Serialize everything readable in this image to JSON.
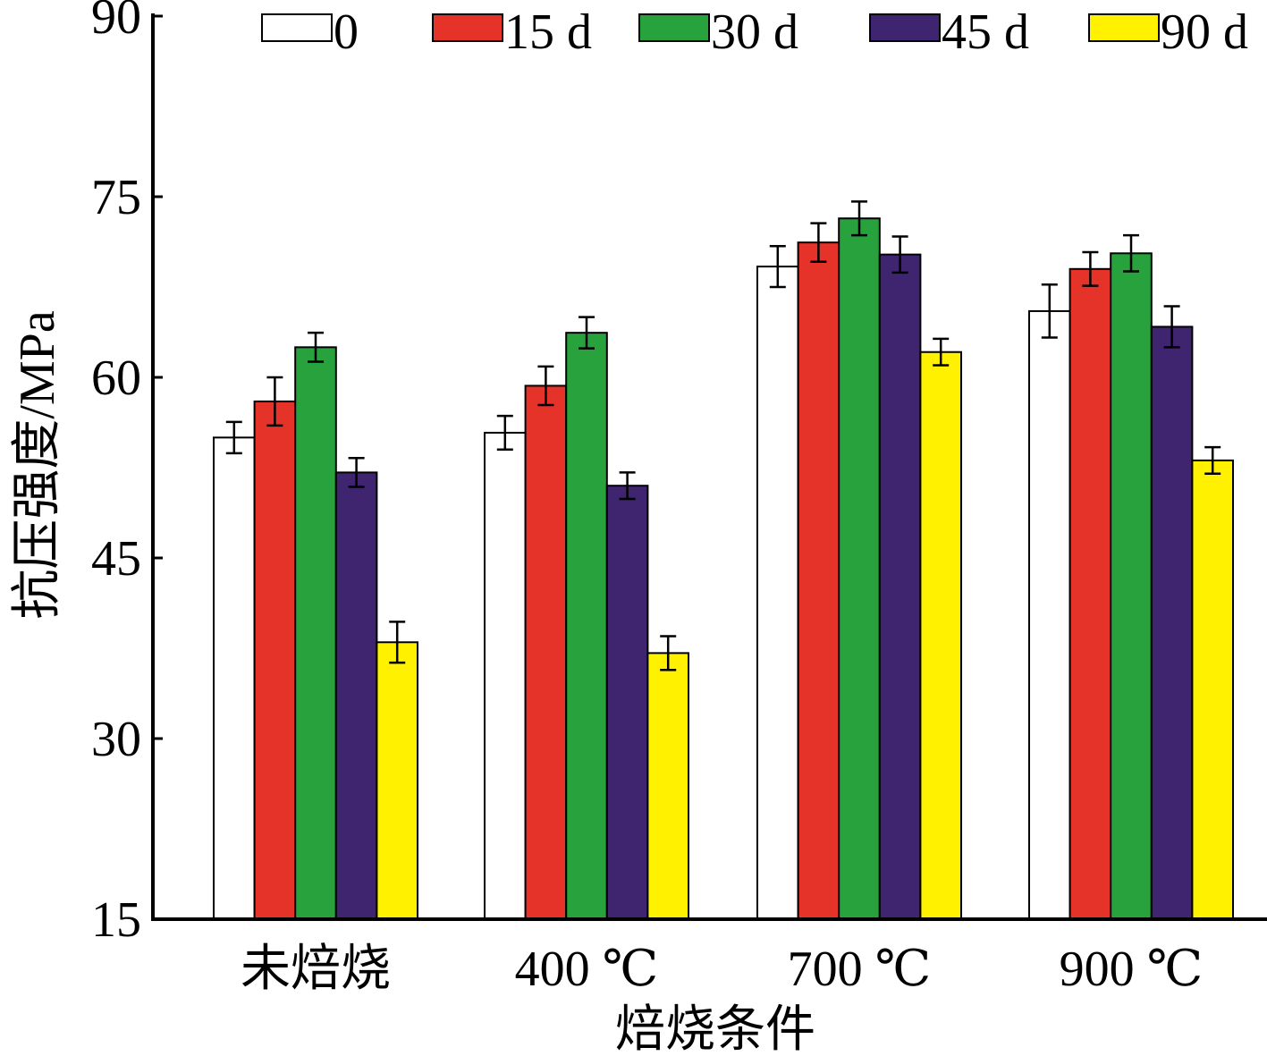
{
  "chart_data": {
    "type": "bar",
    "title": "",
    "xlabel": "焙烧条件",
    "ylabel": "抗压强度/MPa",
    "ylim": [
      15,
      90
    ],
    "yticks": [
      "15",
      "30",
      "45",
      "60",
      "75",
      "90"
    ],
    "grid": false,
    "legend_position": "top",
    "categories": [
      "未焙烧",
      "400 ℃",
      "700 ℃",
      "900 ℃"
    ],
    "series": [
      {
        "name": "0",
        "color": "#ffffff",
        "values": [
          55.0,
          55.4,
          69.2,
          65.5
        ],
        "errors": [
          1.3,
          1.4,
          1.7,
          2.2
        ]
      },
      {
        "name": "15 d",
        "color": "#e5332a",
        "values": [
          58.0,
          59.3,
          71.2,
          69.0
        ],
        "errors": [
          2.0,
          1.6,
          1.6,
          1.4
        ]
      },
      {
        "name": "30 d",
        "color": "#27a23c",
        "values": [
          62.5,
          63.7,
          73.2,
          70.3
        ],
        "errors": [
          1.2,
          1.3,
          1.4,
          1.5
        ]
      },
      {
        "name": "45 d",
        "color": "#3f2470",
        "values": [
          52.1,
          51.0,
          70.2,
          64.2
        ],
        "errors": [
          1.2,
          1.1,
          1.5,
          1.7
        ]
      },
      {
        "name": "90 d",
        "color": "#fff100",
        "values": [
          38.0,
          37.1,
          62.1,
          53.1
        ],
        "errors": [
          1.7,
          1.4,
          1.1,
          1.1
        ]
      }
    ]
  }
}
